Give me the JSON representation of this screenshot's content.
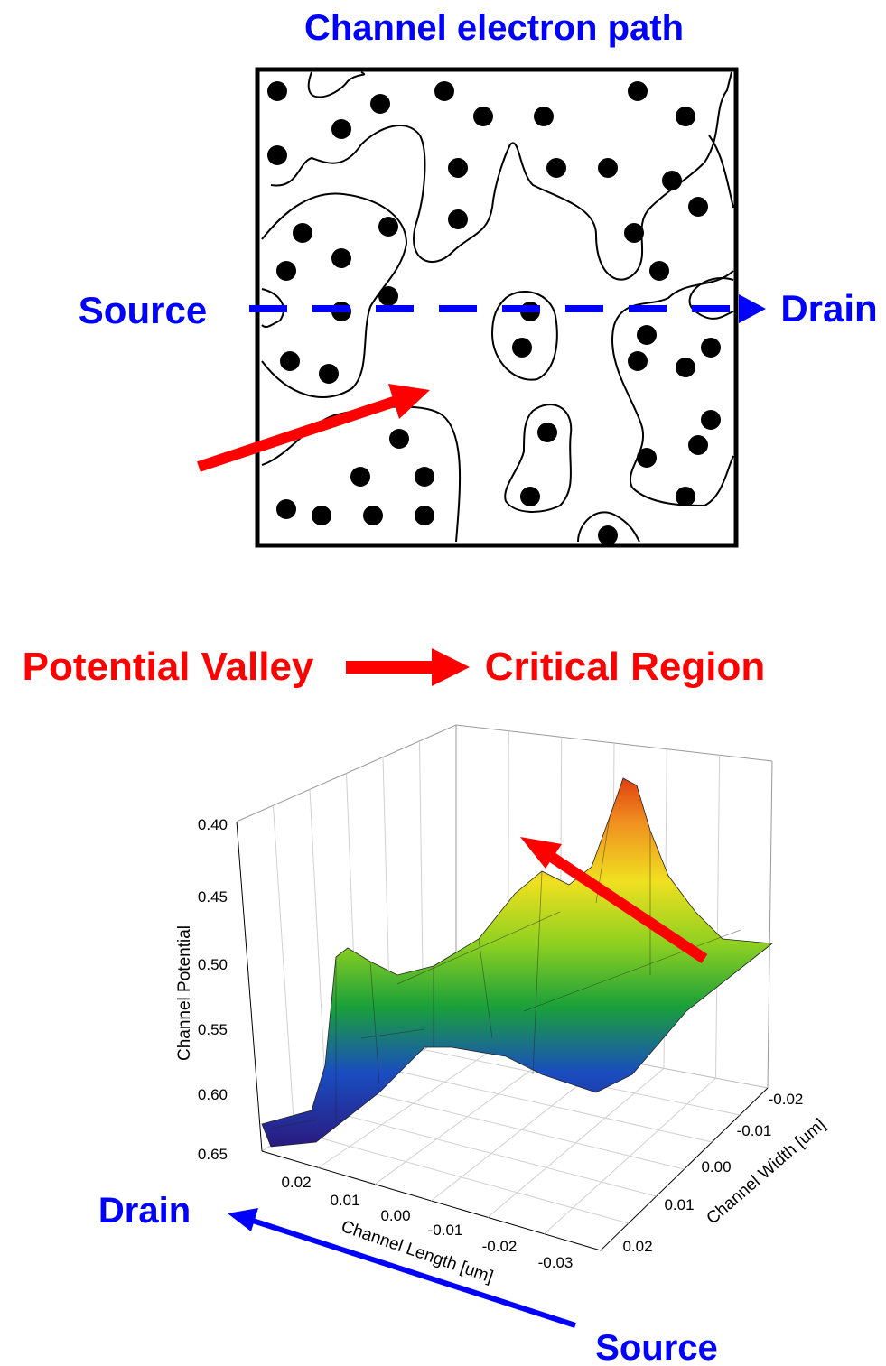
{
  "top_panel": {
    "title": "Channel electron path",
    "source_label": "Source",
    "drain_label": "Drain"
  },
  "middle_caption": {
    "left": "Potential Valley",
    "right": "Critical Region"
  },
  "surface_plot": {
    "z_axis_label": "Channel Potential",
    "z_ticks": [
      "0.40",
      "0.45",
      "0.50",
      "0.55",
      "0.60",
      "0.65"
    ],
    "x_axis_label": "Channel Length [um]",
    "x_ticks": [
      "0.02",
      "0.01",
      "0.00",
      "-0.01",
      "-0.02",
      "-0.03"
    ],
    "y_axis_label": "Channel Width [um]",
    "y_ticks": [
      "-0.02",
      "-0.01",
      "0.00",
      "0.01",
      "0.02"
    ]
  },
  "bottom_labels": {
    "drain": "Drain",
    "source": "Source"
  }
}
